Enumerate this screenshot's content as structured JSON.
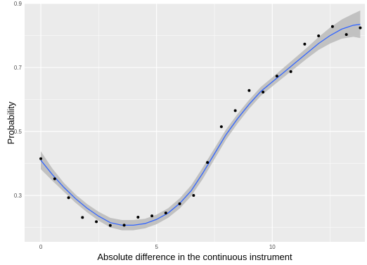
{
  "chart_data": {
    "type": "scatter",
    "title": "",
    "xlabel": "Absolute difference in the continuous instrument",
    "ylabel": "Probability",
    "xlim": [
      -0.7,
      14.0
    ],
    "ylim": [
      0.155,
      0.9
    ],
    "x_ticks": [
      0,
      5,
      10
    ],
    "x_tick_labels": [
      "0",
      "5",
      "10"
    ],
    "y_ticks": [
      0.3,
      0.5,
      0.7,
      0.9
    ],
    "y_tick_labels": [
      "0.3",
      "0.5",
      "0.7",
      "0.9"
    ],
    "grid": true,
    "colors": {
      "panel": "#ebebeb",
      "grid": "#ffffff",
      "points": "#000000",
      "smooth_line": "#3366ff",
      "confidence_band": "#bdbdbd"
    },
    "series": [
      {
        "type": "scatter",
        "x": [
          0,
          0.6,
          1.2,
          1.8,
          2.4,
          3.0,
          3.6,
          4.2,
          4.8,
          5.4,
          6.0,
          6.6,
          7.2,
          7.8,
          8.4,
          9.0,
          9.6,
          10.2,
          10.8,
          11.4,
          12.0,
          12.6,
          13.2,
          13.8
        ],
        "y": [
          0.415,
          0.352,
          0.293,
          0.231,
          0.218,
          0.206,
          0.207,
          0.232,
          0.236,
          0.245,
          0.274,
          0.3,
          0.403,
          0.515,
          0.565,
          0.628,
          0.623,
          0.673,
          0.687,
          0.773,
          0.799,
          0.828,
          0.803,
          0.824
        ]
      },
      {
        "type": "line",
        "x": [
          0,
          0.5,
          1.0,
          1.5,
          2.0,
          2.5,
          3.0,
          3.5,
          4.0,
          4.5,
          5.0,
          5.5,
          6.0,
          6.5,
          7.0,
          7.5,
          8.0,
          8.5,
          9.0,
          9.5,
          10.0,
          10.5,
          11.0,
          11.5,
          12.0,
          12.5,
          13.0,
          13.5,
          13.8
        ],
        "y": [
          0.41,
          0.365,
          0.325,
          0.29,
          0.26,
          0.235,
          0.215,
          0.207,
          0.207,
          0.212,
          0.225,
          0.245,
          0.275,
          0.315,
          0.37,
          0.43,
          0.49,
          0.54,
          0.585,
          0.625,
          0.655,
          0.685,
          0.715,
          0.745,
          0.775,
          0.8,
          0.82,
          0.832,
          0.835
        ],
        "lower": [
          0.382,
          0.346,
          0.311,
          0.277,
          0.247,
          0.221,
          0.2,
          0.191,
          0.191,
          0.197,
          0.21,
          0.23,
          0.259,
          0.298,
          0.352,
          0.413,
          0.474,
          0.525,
          0.571,
          0.611,
          0.641,
          0.67,
          0.699,
          0.728,
          0.755,
          0.775,
          0.79,
          0.796,
          0.792
        ],
        "upper": [
          0.438,
          0.384,
          0.339,
          0.303,
          0.273,
          0.249,
          0.23,
          0.223,
          0.223,
          0.227,
          0.24,
          0.26,
          0.291,
          0.332,
          0.388,
          0.447,
          0.506,
          0.555,
          0.599,
          0.639,
          0.669,
          0.7,
          0.731,
          0.762,
          0.795,
          0.825,
          0.85,
          0.868,
          0.878
        ]
      }
    ]
  }
}
